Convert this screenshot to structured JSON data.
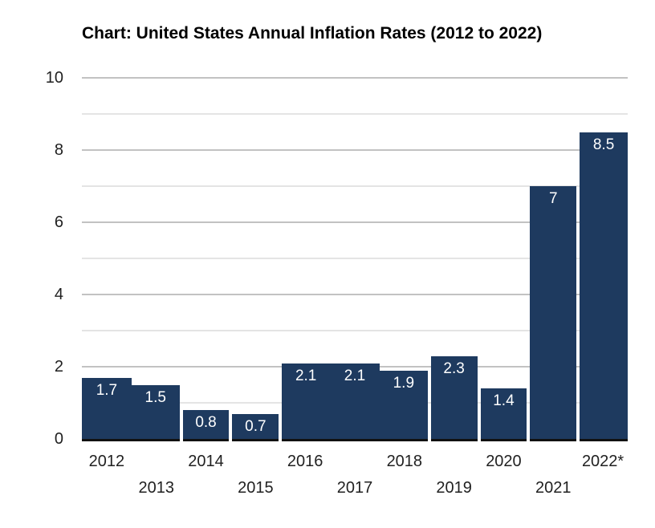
{
  "chart_data": {
    "type": "bar",
    "title": "Chart: United States Annual Inflation Rates (2012 to 2022)",
    "categories": [
      "2012",
      "2013",
      "2014",
      "2015",
      "2016",
      "2017",
      "2018",
      "2019",
      "2020",
      "2021",
      "2022*"
    ],
    "values": [
      1.7,
      1.5,
      0.8,
      0.7,
      2.1,
      2.1,
      1.9,
      2.3,
      1.4,
      7,
      8.5
    ],
    "bar_labels": [
      "1.7",
      "1.5",
      "0.8",
      "0.7",
      "2.1",
      "2.1",
      "1.9",
      "2.3",
      "1.4",
      "7",
      "8.5"
    ],
    "xlabel": "",
    "ylabel": "",
    "ylim": [
      0,
      10
    ],
    "y_major_ticks": [
      10,
      8,
      6,
      4,
      2,
      0
    ],
    "y_minor_gridlines": [
      9,
      7,
      5,
      3,
      1
    ],
    "grid": true,
    "legend": "none",
    "x_label_stagger": true,
    "bar_value_labels_inside": true,
    "gap_after": [
      false,
      true,
      true,
      true,
      false,
      false,
      true,
      true,
      true,
      true
    ],
    "colors": {
      "bar": "#1e3a5f",
      "bar_label": "#ffffff",
      "axis_line": "#111111",
      "major_grid": "#c2c2c2",
      "minor_grid": "#e4e4e4",
      "tick_label": "#212121",
      "title": "#000000",
      "background": "#ffffff"
    }
  }
}
